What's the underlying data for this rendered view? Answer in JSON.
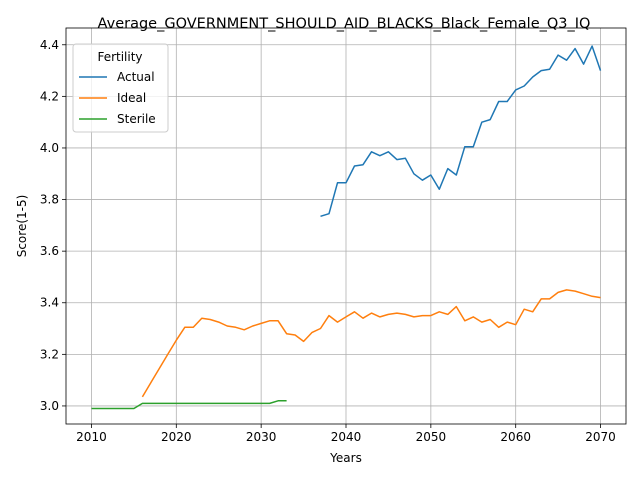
{
  "chart_data": {
    "type": "line",
    "title": "Average_GOVERNMENT_SHOULD_AID_BLACKS_Black_Female_Q3_IQ",
    "xlabel": "Years",
    "ylabel": "Score(1-5)",
    "xlim": [
      2007,
      2073
    ],
    "ylim": [
      2.93,
      4.465
    ],
    "xticks": [
      2010,
      2020,
      2030,
      2040,
      2050,
      2060,
      2070
    ],
    "yticks": [
      3.0,
      3.2,
      3.4,
      3.6,
      3.8,
      4.0,
      4.2,
      4.4
    ],
    "ytick_labels": [
      "3.0",
      "3.2",
      "3.4",
      "3.6",
      "3.8",
      "4.0",
      "4.2",
      "4.4"
    ],
    "grid": true,
    "legend": {
      "title": "Fertility",
      "placement": "upper left"
    },
    "series": [
      {
        "name": "Actual",
        "color": "#1f77b4",
        "x": [
          2037,
          2038,
          2039,
          2040,
          2041,
          2042,
          2043,
          2044,
          2045,
          2046,
          2047,
          2048,
          2049,
          2050,
          2051,
          2052,
          2053,
          2054,
          2055,
          2056,
          2057,
          2058,
          2059,
          2060,
          2061,
          2062,
          2063,
          2064,
          2065,
          2066,
          2067,
          2068,
          2069,
          2070
        ],
        "y": [
          3.735,
          3.745,
          3.865,
          3.865,
          3.93,
          3.935,
          3.985,
          3.97,
          3.985,
          3.955,
          3.96,
          3.9,
          3.875,
          3.895,
          3.84,
          3.92,
          3.895,
          4.005,
          4.005,
          4.1,
          4.11,
          4.18,
          4.18,
          4.225,
          4.24,
          4.275,
          4.3,
          4.305,
          4.36,
          4.34,
          4.385,
          4.325,
          4.395,
          4.3
        ]
      },
      {
        "name": "Ideal",
        "color": "#ff7f0e",
        "x": [
          2016,
          2017,
          2018,
          2019,
          2020,
          2021,
          2022,
          2023,
          2024,
          2025,
          2026,
          2027,
          2028,
          2029,
          2030,
          2031,
          2032,
          2033,
          2034,
          2035,
          2036,
          2037,
          2038,
          2039,
          2040,
          2041,
          2042,
          2043,
          2044,
          2045,
          2046,
          2047,
          2048,
          2049,
          2050,
          2051,
          2052,
          2053,
          2054,
          2055,
          2056,
          2057,
          2058,
          2059,
          2060,
          2061,
          2062,
          2063,
          2064,
          2065,
          2066,
          2067,
          2068,
          2069,
          2070
        ],
        "y": [
          3.035,
          3.09,
          3.145,
          3.2,
          3.255,
          3.305,
          3.305,
          3.34,
          3.335,
          3.325,
          3.31,
          3.305,
          3.295,
          3.31,
          3.32,
          3.33,
          3.33,
          3.28,
          3.275,
          3.25,
          3.285,
          3.3,
          3.35,
          3.325,
          3.345,
          3.365,
          3.34,
          3.36,
          3.345,
          3.355,
          3.36,
          3.355,
          3.345,
          3.35,
          3.35,
          3.365,
          3.355,
          3.385,
          3.33,
          3.345,
          3.325,
          3.335,
          3.305,
          3.325,
          3.315,
          3.375,
          3.365,
          3.415,
          3.415,
          3.44,
          3.45,
          3.445,
          3.435,
          3.425,
          3.42
        ]
      },
      {
        "name": "Sterile",
        "color": "#2ca02c",
        "x": [
          2010,
          2011,
          2012,
          2013,
          2014,
          2015,
          2016,
          2017,
          2018,
          2019,
          2020,
          2021,
          2022,
          2023,
          2024,
          2025,
          2026,
          2027,
          2028,
          2029,
          2030,
          2031,
          2032,
          2033
        ],
        "y": [
          2.99,
          2.99,
          2.99,
          2.99,
          2.99,
          2.99,
          3.01,
          3.01,
          3.01,
          3.01,
          3.01,
          3.01,
          3.01,
          3.01,
          3.01,
          3.01,
          3.01,
          3.01,
          3.01,
          3.01,
          3.01,
          3.01,
          3.02,
          3.02
        ]
      }
    ]
  }
}
